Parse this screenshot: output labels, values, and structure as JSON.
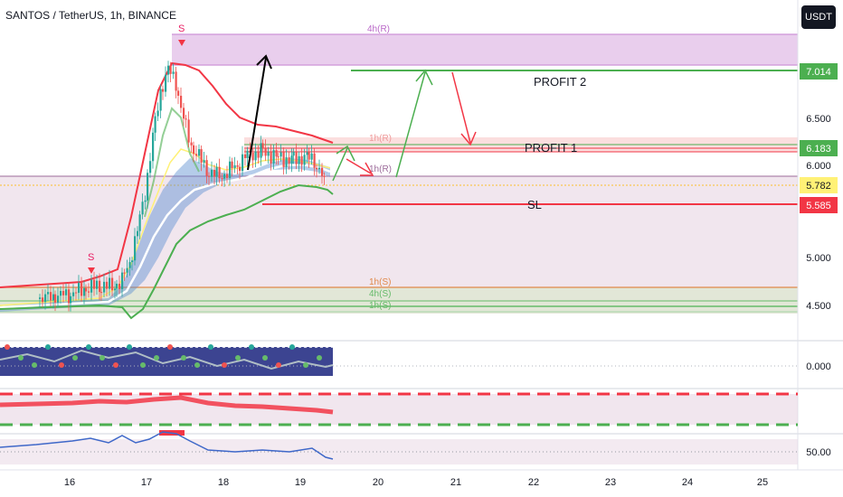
{
  "header": {
    "title": "SANTOS / TetherUS, 1h, BINANCE",
    "currency_button": "USDT"
  },
  "colors": {
    "zone_purple": "#e1bee7",
    "profit_green": "#4caf50",
    "sl_red": "#f23645",
    "entry_yellow": "#fff176",
    "ema_white": "#ffffff",
    "cloud_blue": "#5b8fd1",
    "band_red": "#f23645",
    "band_green": "#4caf50"
  },
  "chart_data": {
    "type": "line",
    "title": "SANTOS / TetherUS, 1h, BINANCE",
    "x_ticks": [
      "16",
      "17",
      "18",
      "19",
      "20",
      "21",
      "22",
      "23",
      "24",
      "25"
    ],
    "y_ticks": [
      "4.500",
      "5.000",
      "6.000",
      "6.500"
    ],
    "levels": [
      {
        "label": "PROFIT 2",
        "price_tag": "7.014",
        "value": 7.014
      },
      {
        "label": "PROFIT 1",
        "price_tag": "6.183",
        "value": 6.183
      },
      {
        "label": "",
        "price_tag": "5.782",
        "value": 5.782
      },
      {
        "label": "SL",
        "price_tag": "5.585",
        "value": 5.585
      }
    ],
    "zone_labels": [
      "4h(R)",
      "1h(R)",
      "1h(R)",
      "1h(S)",
      "4h(S)",
      "1h(S)"
    ],
    "signal_markers": [
      "S",
      "S"
    ],
    "indicator_ticks": {
      "oscillator": "0.000",
      "rsi": "50.00"
    },
    "price_series": [
      [
        15.6,
        4.55
      ],
      [
        15.8,
        4.58
      ],
      [
        16.0,
        4.6
      ],
      [
        16.2,
        4.65
      ],
      [
        16.4,
        4.7
      ],
      [
        16.6,
        4.68
      ],
      [
        16.7,
        4.75
      ],
      [
        16.8,
        4.95
      ],
      [
        16.9,
        5.3
      ],
      [
        17.0,
        5.7
      ],
      [
        17.1,
        6.3
      ],
      [
        17.2,
        6.8
      ],
      [
        17.3,
        7.05
      ],
      [
        17.4,
        6.9
      ],
      [
        17.5,
        6.5
      ],
      [
        17.6,
        6.2
      ],
      [
        17.7,
        6.1
      ],
      [
        17.8,
        5.95
      ],
      [
        17.9,
        5.9
      ],
      [
        18.0,
        5.88
      ],
      [
        18.1,
        5.95
      ],
      [
        18.2,
        6.0
      ],
      [
        18.3,
        6.1
      ],
      [
        18.5,
        6.15
      ],
      [
        18.7,
        6.1
      ],
      [
        18.9,
        6.05
      ],
      [
        19.1,
        6.1
      ],
      [
        19.2,
        6.05
      ],
      [
        19.3,
        5.9
      ],
      [
        19.35,
        5.78
      ]
    ]
  }
}
